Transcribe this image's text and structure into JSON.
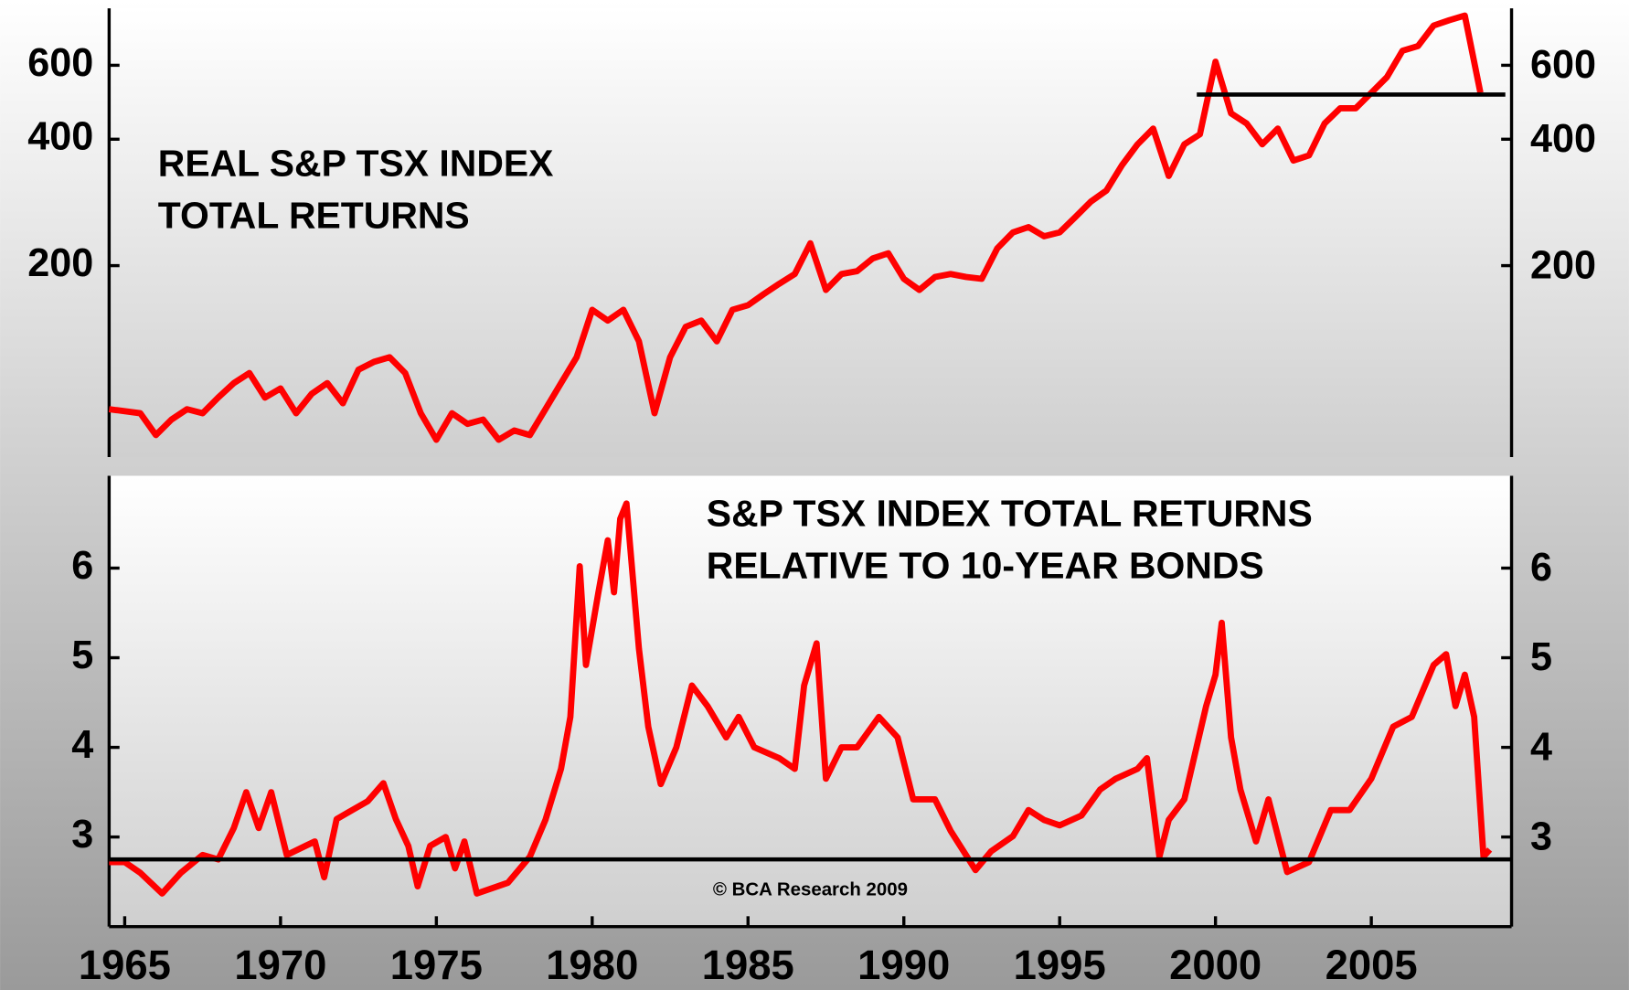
{
  "chart_data": [
    {
      "type": "line",
      "title": [
        "REAL S&P TSX INDEX",
        "TOTAL RETURNS"
      ],
      "log_scale": true,
      "xlim": [
        1964.5,
        2009.5
      ],
      "ylim": [
        70,
        820
      ],
      "yticks": [
        200,
        400,
        600
      ],
      "x": [
        1964.5,
        1965.5,
        1966,
        1966.5,
        1967,
        1967.5,
        1968,
        1968.5,
        1969,
        1969.5,
        1970,
        1970.5,
        1971,
        1971.5,
        1972,
        1972.5,
        1973,
        1973.5,
        1974,
        1974.5,
        1975,
        1975.5,
        1976,
        1976.5,
        1977,
        1977.5,
        1978,
        1978.5,
        1979,
        1979.5,
        1980,
        1980.5,
        1981,
        1981.5,
        1982,
        1982.5,
        1983,
        1983.5,
        1984,
        1984.5,
        1985,
        1985.5,
        1986,
        1986.5,
        1987,
        1987.5,
        1988,
        1988.5,
        1989,
        1989.5,
        1990,
        1990.5,
        1991,
        1991.5,
        1992,
        1992.5,
        1993,
        1993.5,
        1994,
        1994.5,
        1995,
        1995.5,
        1996,
        1996.5,
        1997,
        1997.5,
        1998,
        1998.5,
        1999,
        1999.5,
        2000,
        2000.5,
        2001,
        2001.5,
        2002,
        2002.5,
        2003,
        2003.5,
        2004,
        2004.5,
        2005,
        2005.5,
        2006,
        2006.5,
        2007,
        2007.5,
        2008,
        2008.5
      ],
      "series": [
        {
          "name": "Real S&P TSX total returns",
          "color": "#ff0000",
          "values": [
            91,
            89,
            79,
            86,
            91,
            89,
            97,
            105,
            111,
            97,
            102,
            89,
            99,
            105,
            94,
            113,
            118,
            121,
            111,
            89,
            77,
            89,
            84,
            86,
            77,
            81,
            79,
            91,
            105,
            121,
            157,
            148,
            157,
            132,
            89,
            121,
            143,
            148,
            132,
            157,
            161,
            171,
            181,
            191,
            226,
            175,
            191,
            194,
            208,
            214,
            186,
            175,
            188,
            191,
            188,
            186,
            220,
            240,
            247,
            235,
            240,
            261,
            284,
            302,
            347,
            389,
            424,
            327,
            389,
            411,
            612,
            461,
            436,
            389,
            424,
            356,
            366,
            436,
            474,
            474,
            516,
            562,
            650,
            667,
            746,
            768,
            788,
            516
          ]
        }
      ],
      "hline": {
        "value": 511,
        "x": [
          1999.4,
          2009.3
        ],
        "color": "#000000"
      }
    },
    {
      "type": "line",
      "title": [
        "S&P TSX INDEX TOTAL RETURNS",
        "RELATIVE TO 10-YEAR BONDS"
      ],
      "annotation": "© BCA Research 2009",
      "xlim": [
        1964.5,
        2009.5
      ],
      "ylim": [
        2,
        7.03
      ],
      "yticks": [
        3,
        4,
        5,
        6
      ],
      "xticks": [
        1965,
        1970,
        1975,
        1980,
        1985,
        1990,
        1995,
        2000,
        2005
      ],
      "x": [
        1964.5,
        1965,
        1965.5,
        1966.2,
        1966.8,
        1967.5,
        1968,
        1968.5,
        1968.9,
        1969.3,
        1969.7,
        1970.2,
        1970.8,
        1971.1,
        1971.4,
        1971.8,
        1972.3,
        1972.8,
        1973.3,
        1973.7,
        1974.1,
        1974.4,
        1974.8,
        1975.3,
        1975.6,
        1975.9,
        1976.3,
        1977.3,
        1978,
        1978.5,
        1979,
        1979.3,
        1979.6,
        1979.8,
        1980.2,
        1980.5,
        1980.7,
        1980.9,
        1981.1,
        1981.5,
        1981.8,
        1982.2,
        1982.7,
        1983.2,
        1983.7,
        1984.3,
        1984.7,
        1985.2,
        1986,
        1986.5,
        1986.8,
        1987.2,
        1987.5,
        1988,
        1988.5,
        1989.2,
        1989.8,
        1990.3,
        1991,
        1991.5,
        1992.3,
        1992.8,
        1993.5,
        1994,
        1994.5,
        1995,
        1995.7,
        1996.3,
        1996.8,
        1997.5,
        1997.8,
        1998.2,
        1998.5,
        1999,
        1999.7,
        2000,
        2000.2,
        2000.5,
        2000.8,
        2001.3,
        2001.7,
        2002.3,
        2003,
        2003.7,
        2004.3,
        2005,
        2005.7,
        2006.3,
        2007,
        2007.4,
        2007.7,
        2008,
        2008.3,
        2008.6,
        2008.8
      ],
      "series": [
        {
          "name": "Relative to 10-year bonds",
          "color": "#ff0000",
          "values": [
            2.72,
            2.72,
            2.6,
            2.37,
            2.6,
            2.8,
            2.75,
            3.1,
            3.5,
            3.1,
            3.5,
            2.8,
            2.9,
            2.95,
            2.55,
            3.2,
            3.3,
            3.4,
            3.6,
            3.2,
            2.9,
            2.45,
            2.9,
            3.0,
            2.65,
            2.95,
            2.37,
            2.49,
            2.78,
            3.19,
            3.76,
            4.34,
            6.02,
            4.92,
            5.73,
            6.31,
            5.73,
            6.55,
            6.72,
            5.1,
            4.23,
            3.59,
            4.0,
            4.69,
            4.46,
            4.11,
            4.34,
            4.0,
            3.88,
            3.76,
            4.69,
            5.16,
            3.65,
            4.0,
            4.0,
            4.34,
            4.11,
            3.42,
            3.42,
            3.07,
            2.63,
            2.84,
            3.01,
            3.3,
            3.19,
            3.13,
            3.24,
            3.53,
            3.65,
            3.76,
            3.88,
            2.78,
            3.19,
            3.42,
            4.46,
            4.81,
            5.39,
            4.11,
            3.53,
            2.95,
            3.42,
            2.61,
            2.72,
            3.3,
            3.3,
            3.65,
            4.23,
            4.34,
            4.92,
            5.04,
            4.46,
            4.81,
            4.34,
            2.78,
            2.86
          ]
        }
      ],
      "hline": {
        "value": 2.75,
        "x": [
          1964.5,
          2009.5
        ],
        "color": "#000000"
      }
    }
  ]
}
